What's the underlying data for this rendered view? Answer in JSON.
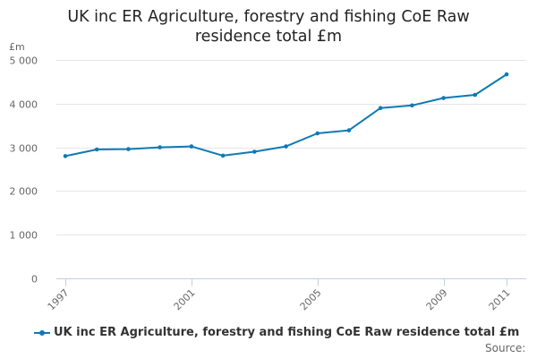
{
  "colors": {
    "series": "#0d7ab5"
  },
  "chart_data": {
    "type": "line",
    "title": "UK inc ER Agriculture, forestry and fishing CoE Raw residence total £m",
    "title_lines": [
      "UK inc ER Agriculture, forestry and fishing CoE Raw",
      "residence total £m"
    ],
    "ylabel": "£m",
    "xlabel": "",
    "x": [
      1997,
      1998,
      1999,
      2000,
      2001,
      2002,
      2003,
      2004,
      2005,
      2006,
      2007,
      2008,
      2009,
      2010,
      2011
    ],
    "xlim": [
      1997,
      2011
    ],
    "x_ticks": [
      1997,
      2001,
      2005,
      2009,
      2011
    ],
    "ylim": [
      0,
      5000
    ],
    "y_ticks": [
      0,
      1000,
      2000,
      3000,
      4000,
      5000
    ],
    "y_tick_labels": [
      "0",
      "1 000",
      "2 000",
      "3 000",
      "4 000",
      "5 000"
    ],
    "grid": true,
    "legend_position": "bottom-left",
    "series": [
      {
        "name": "UK inc ER Agriculture, forestry and fishing CoE Raw residence total £m",
        "values": [
          2800,
          2950,
          2960,
          3000,
          3020,
          2810,
          2900,
          3020,
          3320,
          3390,
          3900,
          3960,
          4130,
          4200,
          4670
        ]
      }
    ]
  },
  "source_label": "Source:"
}
